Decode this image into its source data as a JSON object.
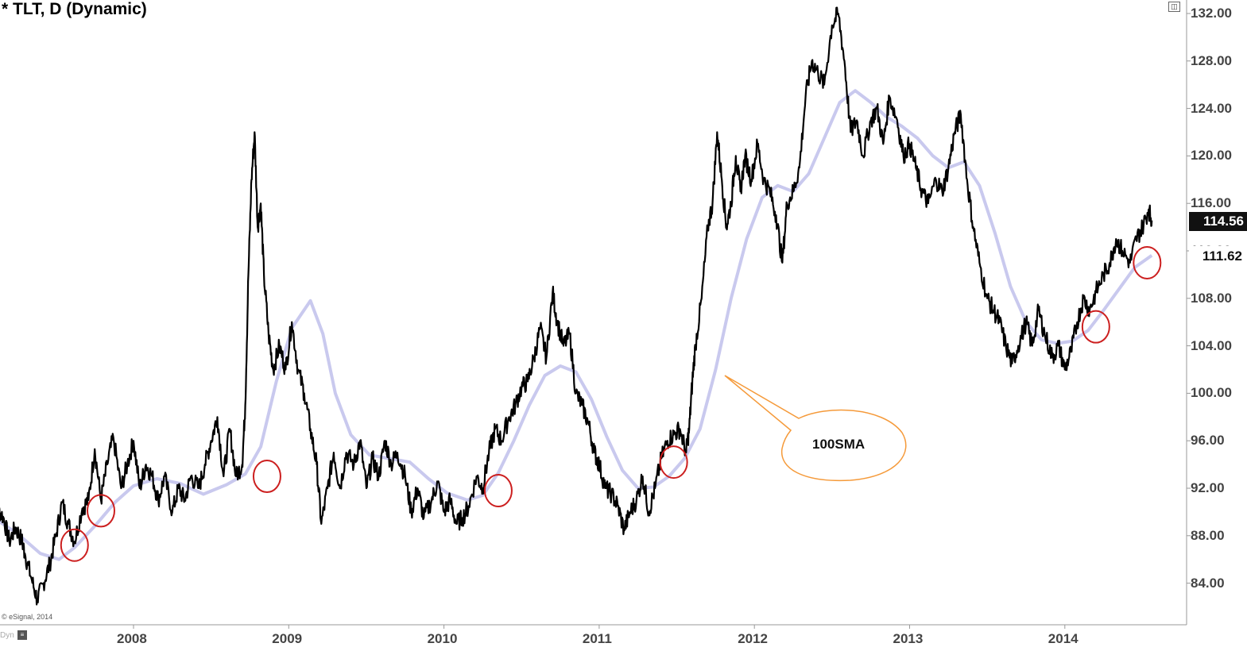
{
  "title": "* TLT, D (Dynamic)",
  "copyright": "© eSignal, 2014",
  "dyn_label": "Dyn",
  "dyn_icon": "chart-settings-icon",
  "window_icon": "restore-window-icon",
  "colors": {
    "price": "#000000",
    "sma": "#c9c9ee",
    "circle": "#cc1f1f",
    "callout_fill": "#ffffff",
    "callout_stroke": "#f59a3a",
    "axis": "#999999"
  },
  "chart_data": {
    "type": "line",
    "x_unit": "year",
    "ylim": [
      81.6,
      133.2
    ],
    "xlim": [
      2007.1,
      2014.75
    ],
    "y_ticks": [
      "132.00",
      "128.00",
      "124.00",
      "120.00",
      "116.00",
      "112.00",
      "108.00",
      "104.00",
      "100.00",
      "96.00",
      "92.00",
      "88.00",
      "84.00"
    ],
    "y_tick_values": [
      132,
      128,
      124,
      120,
      116,
      112,
      108,
      104,
      100,
      96,
      92,
      88,
      84
    ],
    "x_ticks": [
      "2008",
      "2009",
      "2010",
      "2011",
      "2012",
      "2013",
      "2014"
    ],
    "x_tick_values": [
      2008,
      2009,
      2010,
      2011,
      2012,
      2013,
      2014
    ],
    "last_price": "114.56",
    "sma_value": "111.62",
    "annotation": "100SMA",
    "series": [
      {
        "kind": "price",
        "points": [
          [
            2007.1,
            89.0
          ],
          [
            2007.12,
            90.3
          ],
          [
            2007.16,
            89.6
          ],
          [
            2007.2,
            87.5
          ],
          [
            2007.24,
            88.7
          ],
          [
            2007.28,
            87.6
          ],
          [
            2007.3,
            86.5
          ],
          [
            2007.34,
            84.5
          ],
          [
            2007.38,
            82.6
          ],
          [
            2007.42,
            84.0
          ],
          [
            2007.46,
            85.6
          ],
          [
            2007.5,
            88.0
          ],
          [
            2007.54,
            90.8
          ],
          [
            2007.58,
            89.0
          ],
          [
            2007.62,
            87.5
          ],
          [
            2007.67,
            90.3
          ],
          [
            2007.71,
            91.0
          ],
          [
            2007.75,
            95.3
          ],
          [
            2007.79,
            91.0
          ],
          [
            2007.83,
            94.0
          ],
          [
            2007.87,
            96.3
          ],
          [
            2007.92,
            92.0
          ],
          [
            2007.96,
            94.0
          ],
          [
            2008.0,
            96.0
          ],
          [
            2008.04,
            92.0
          ],
          [
            2008.08,
            94.0
          ],
          [
            2008.12,
            93.0
          ],
          [
            2008.16,
            91.0
          ],
          [
            2008.2,
            93.0
          ],
          [
            2008.25,
            90.0
          ],
          [
            2008.29,
            92.0
          ],
          [
            2008.33,
            91.0
          ],
          [
            2008.37,
            93.0
          ],
          [
            2008.42,
            92.0
          ],
          [
            2008.46,
            94.0
          ],
          [
            2008.5,
            96.0
          ],
          [
            2008.54,
            98.0
          ],
          [
            2008.58,
            93.0
          ],
          [
            2008.62,
            97.0
          ],
          [
            2008.66,
            93.0
          ],
          [
            2008.7,
            94.0
          ],
          [
            2008.72,
            99.0
          ],
          [
            2008.74,
            110.0
          ],
          [
            2008.76,
            118.0
          ],
          [
            2008.78,
            122.0
          ],
          [
            2008.8,
            114.0
          ],
          [
            2008.82,
            116.0
          ],
          [
            2008.84,
            110.0
          ],
          [
            2008.87,
            105.0
          ],
          [
            2008.9,
            102.0
          ],
          [
            2008.94,
            104.0
          ],
          [
            2008.98,
            102.0
          ],
          [
            2009.02,
            106.0
          ],
          [
            2009.06,
            102.0
          ],
          [
            2009.1,
            100.0
          ],
          [
            2009.14,
            97.0
          ],
          [
            2009.18,
            94.0
          ],
          [
            2009.21,
            89.0
          ],
          [
            2009.25,
            92.0
          ],
          [
            2009.29,
            95.0
          ],
          [
            2009.33,
            92.0
          ],
          [
            2009.37,
            95.0
          ],
          [
            2009.42,
            94.0
          ],
          [
            2009.46,
            96.0
          ],
          [
            2009.5,
            92.0
          ],
          [
            2009.54,
            94.5
          ],
          [
            2009.58,
            93.0
          ],
          [
            2009.62,
            96.0
          ],
          [
            2009.66,
            94.0
          ],
          [
            2009.7,
            95.0
          ],
          [
            2009.75,
            93.0
          ],
          [
            2009.79,
            90.0
          ],
          [
            2009.83,
            92.0
          ],
          [
            2009.87,
            89.5
          ],
          [
            2009.92,
            91.0
          ],
          [
            2009.96,
            92.5
          ],
          [
            2010.0,
            90.0
          ],
          [
            2010.04,
            91.0
          ],
          [
            2010.08,
            89.0
          ],
          [
            2010.12,
            89.5
          ],
          [
            2010.16,
            90.5
          ],
          [
            2010.21,
            93.0
          ],
          [
            2010.25,
            92.0
          ],
          [
            2010.29,
            95.0
          ],
          [
            2010.33,
            97.0
          ],
          [
            2010.37,
            96.0
          ],
          [
            2010.42,
            98.0
          ],
          [
            2010.46,
            99.0
          ],
          [
            2010.5,
            100.5
          ],
          [
            2010.54,
            101.0
          ],
          [
            2010.58,
            103.0
          ],
          [
            2010.62,
            105.5
          ],
          [
            2010.66,
            103.0
          ],
          [
            2010.7,
            108.5
          ],
          [
            2010.73,
            106.0
          ],
          [
            2010.77,
            104.0
          ],
          [
            2010.81,
            105.0
          ],
          [
            2010.85,
            100.0
          ],
          [
            2010.89,
            99.0
          ],
          [
            2010.93,
            97.5
          ],
          [
            2010.97,
            95.0
          ],
          [
            2011.0,
            94.0
          ],
          [
            2011.04,
            92.0
          ],
          [
            2011.08,
            91.5
          ],
          [
            2011.12,
            90.5
          ],
          [
            2011.16,
            88.5
          ],
          [
            2011.2,
            90.0
          ],
          [
            2011.24,
            91.0
          ],
          [
            2011.28,
            93.0
          ],
          [
            2011.32,
            90.0
          ],
          [
            2011.36,
            92.0
          ],
          [
            2011.4,
            94.5
          ],
          [
            2011.44,
            96.0
          ],
          [
            2011.48,
            96.5
          ],
          [
            2011.52,
            97.0
          ],
          [
            2011.56,
            95.0
          ],
          [
            2011.58,
            97.0
          ],
          [
            2011.6,
            101.0
          ],
          [
            2011.62,
            104.0
          ],
          [
            2011.66,
            108.0
          ],
          [
            2011.7,
            114.0
          ],
          [
            2011.73,
            116.0
          ],
          [
            2011.76,
            122.0
          ],
          [
            2011.79,
            118.0
          ],
          [
            2011.82,
            114.0
          ],
          [
            2011.85,
            116.0
          ],
          [
            2011.88,
            120.0
          ],
          [
            2011.91,
            117.0
          ],
          [
            2011.94,
            120.0
          ],
          [
            2011.98,
            118.0
          ],
          [
            2012.02,
            121.0
          ],
          [
            2012.06,
            118.0
          ],
          [
            2012.1,
            117.0
          ],
          [
            2012.14,
            115.0
          ],
          [
            2012.18,
            111.0
          ],
          [
            2012.21,
            116.0
          ],
          [
            2012.25,
            117.0
          ],
          [
            2012.29,
            119.0
          ],
          [
            2012.33,
            125.0
          ],
          [
            2012.37,
            128.0
          ],
          [
            2012.41,
            127.0
          ],
          [
            2012.45,
            126.0
          ],
          [
            2012.5,
            131.0
          ],
          [
            2012.54,
            132.0
          ],
          [
            2012.58,
            128.0
          ],
          [
            2012.62,
            122.0
          ],
          [
            2012.66,
            123.0
          ],
          [
            2012.7,
            120.0
          ],
          [
            2012.75,
            123.0
          ],
          [
            2012.79,
            124.0
          ],
          [
            2012.83,
            121.0
          ],
          [
            2012.87,
            125.0
          ],
          [
            2012.92,
            123.0
          ],
          [
            2012.96,
            120.0
          ],
          [
            2013.0,
            121.0
          ],
          [
            2013.04,
            119.0
          ],
          [
            2013.08,
            117.0
          ],
          [
            2013.12,
            116.0
          ],
          [
            2013.17,
            118.0
          ],
          [
            2013.21,
            117.0
          ],
          [
            2013.25,
            119.0
          ],
          [
            2013.29,
            122.0
          ],
          [
            2013.33,
            123.5
          ],
          [
            2013.37,
            118.0
          ],
          [
            2013.41,
            114.0
          ],
          [
            2013.45,
            111.0
          ],
          [
            2013.5,
            108.0
          ],
          [
            2013.54,
            107.0
          ],
          [
            2013.58,
            106.0
          ],
          [
            2013.62,
            104.0
          ],
          [
            2013.66,
            102.5
          ],
          [
            2013.7,
            104.0
          ],
          [
            2013.75,
            106.0
          ],
          [
            2013.79,
            104.0
          ],
          [
            2013.83,
            107.0
          ],
          [
            2013.87,
            105.0
          ],
          [
            2013.92,
            103.0
          ],
          [
            2013.96,
            104.0
          ],
          [
            2014.0,
            102.0
          ],
          [
            2014.04,
            103.5
          ],
          [
            2014.08,
            106.0
          ],
          [
            2014.12,
            108.0
          ],
          [
            2014.16,
            107.0
          ],
          [
            2014.2,
            108.5
          ],
          [
            2014.25,
            110.0
          ],
          [
            2014.29,
            111.0
          ],
          [
            2014.33,
            113.0
          ],
          [
            2014.37,
            112.0
          ],
          [
            2014.42,
            111.0
          ],
          [
            2014.46,
            113.0
          ],
          [
            2014.5,
            114.0
          ],
          [
            2014.54,
            115.5
          ],
          [
            2014.56,
            114.56
          ]
        ]
      },
      {
        "kind": "sma",
        "name": "100SMA",
        "points": [
          [
            2007.1,
            89.5
          ],
          [
            2007.25,
            88.2
          ],
          [
            2007.4,
            86.5
          ],
          [
            2007.52,
            86.0
          ],
          [
            2007.62,
            87.0
          ],
          [
            2007.75,
            88.8
          ],
          [
            2007.88,
            90.8
          ],
          [
            2008.0,
            92.2
          ],
          [
            2008.15,
            92.8
          ],
          [
            2008.3,
            92.4
          ],
          [
            2008.45,
            91.5
          ],
          [
            2008.6,
            92.3
          ],
          [
            2008.72,
            93.2
          ],
          [
            2008.82,
            95.5
          ],
          [
            2008.92,
            101.0
          ],
          [
            2009.02,
            105.5
          ],
          [
            2009.14,
            107.8
          ],
          [
            2009.22,
            105.0
          ],
          [
            2009.3,
            100.0
          ],
          [
            2009.4,
            96.5
          ],
          [
            2009.52,
            94.8
          ],
          [
            2009.65,
            94.5
          ],
          [
            2009.78,
            94.2
          ],
          [
            2009.9,
            92.8
          ],
          [
            2010.02,
            91.6
          ],
          [
            2010.15,
            91.0
          ],
          [
            2010.25,
            91.4
          ],
          [
            2010.35,
            93.3
          ],
          [
            2010.45,
            96.0
          ],
          [
            2010.55,
            99.0
          ],
          [
            2010.65,
            101.5
          ],
          [
            2010.75,
            102.3
          ],
          [
            2010.85,
            101.8
          ],
          [
            2010.95,
            99.5
          ],
          [
            2011.05,
            96.3
          ],
          [
            2011.15,
            93.5
          ],
          [
            2011.25,
            92.0
          ],
          [
            2011.35,
            92.1
          ],
          [
            2011.45,
            93.0
          ],
          [
            2011.55,
            94.5
          ],
          [
            2011.65,
            97.0
          ],
          [
            2011.75,
            102.0
          ],
          [
            2011.85,
            108.0
          ],
          [
            2011.95,
            113.0
          ],
          [
            2012.05,
            116.5
          ],
          [
            2012.15,
            117.5
          ],
          [
            2012.25,
            117.0
          ],
          [
            2012.35,
            118.5
          ],
          [
            2012.45,
            121.5
          ],
          [
            2012.55,
            124.5
          ],
          [
            2012.65,
            125.5
          ],
          [
            2012.75,
            124.5
          ],
          [
            2012.85,
            123.3
          ],
          [
            2012.95,
            122.5
          ],
          [
            2013.05,
            121.5
          ],
          [
            2013.15,
            120.0
          ],
          [
            2013.25,
            119.0
          ],
          [
            2013.35,
            119.5
          ],
          [
            2013.45,
            117.5
          ],
          [
            2013.55,
            113.5
          ],
          [
            2013.65,
            109.0
          ],
          [
            2013.75,
            106.0
          ],
          [
            2013.85,
            104.5
          ],
          [
            2013.95,
            104.2
          ],
          [
            2014.05,
            104.4
          ],
          [
            2014.15,
            105.3
          ],
          [
            2014.25,
            107.0
          ],
          [
            2014.35,
            108.8
          ],
          [
            2014.45,
            110.6
          ],
          [
            2014.56,
            111.62
          ]
        ]
      }
    ],
    "touch_points": [
      [
        2007.62,
        87.2
      ],
      [
        2007.79,
        90.1
      ],
      [
        2008.86,
        93.0
      ],
      [
        2010.35,
        91.8
      ],
      [
        2011.48,
        94.2
      ],
      [
        2014.2,
        105.6
      ],
      [
        2014.53,
        111.0
      ]
    ]
  }
}
